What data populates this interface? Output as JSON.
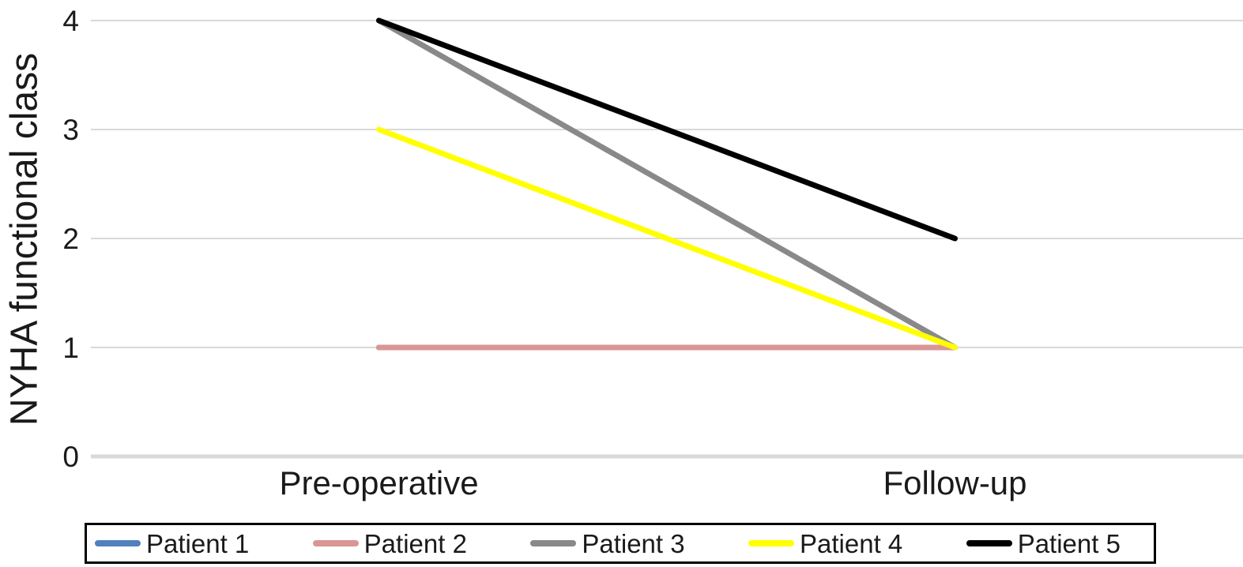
{
  "chart_data": {
    "type": "line",
    "title": "",
    "xlabel": "",
    "ylabel": "NYHA functional class",
    "categories": [
      "Pre-operative",
      "Follow-up"
    ],
    "y_ticks": [
      0,
      1,
      2,
      3,
      4
    ],
    "ylim": [
      0,
      4
    ],
    "grid": "horizontal",
    "legend_position": "bottom",
    "series": [
      {
        "name": "Patient 1",
        "values": [
          1,
          1
        ],
        "color": "#4F81BD",
        "note": "line hidden beneath Patient 2 line in plot"
      },
      {
        "name": "Patient 2",
        "values": [
          1,
          1
        ],
        "color": "#D99694"
      },
      {
        "name": "Patient 3",
        "values": [
          4,
          1
        ],
        "color": "#898989"
      },
      {
        "name": "Patient 4",
        "values": [
          3,
          1
        ],
        "color": "#FFFF00"
      },
      {
        "name": "Patient 5",
        "values": [
          4,
          2
        ],
        "color": "#000000"
      }
    ],
    "style": {
      "gridline_color": "#D9D9D9",
      "baseline_color": "#D9D9D9",
      "text_color": "#1a1a1a",
      "legend_border_color": "#000000",
      "background": "#FFFFFF"
    }
  }
}
